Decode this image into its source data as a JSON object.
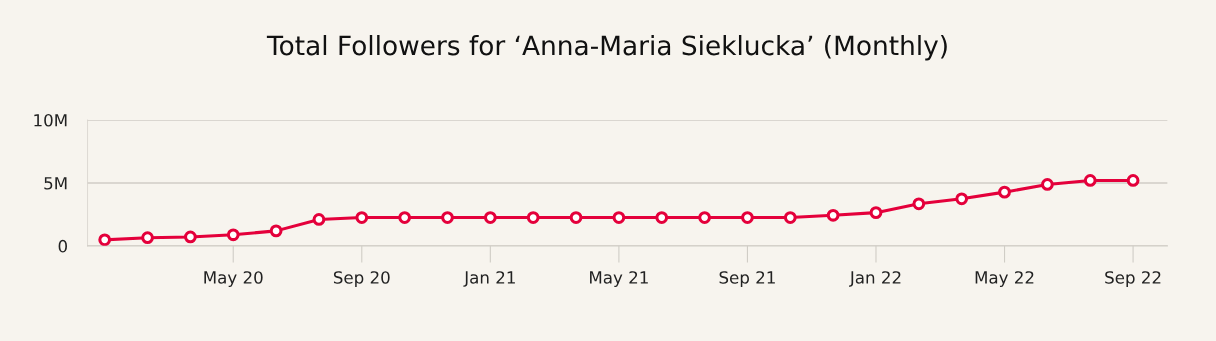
{
  "chart_data": {
    "type": "line",
    "title": "Total Followers for ‘Anna-Maria Sieklucka’ (Monthly)",
    "categories": [
      null,
      null,
      null,
      "May 20",
      null,
      null,
      "Sep 20",
      null,
      null,
      "Jan 21",
      null,
      null,
      "May 21",
      null,
      null,
      "Sep 21",
      null,
      null,
      "Jan 22",
      null,
      null,
      "May 22",
      null,
      null,
      "Sep 22"
    ],
    "series": [
      {
        "color": "#e4003b",
        "values": [
          0.48,
          0.65,
          0.71,
          0.88,
          1.19,
          2.1,
          2.25,
          2.25,
          2.25,
          2.25,
          2.25,
          2.25,
          2.25,
          2.25,
          2.25,
          2.25,
          2.25,
          2.43,
          2.64,
          3.34,
          3.74,
          4.27,
          4.88,
          5.2,
          5.2
        ]
      }
    ],
    "ylim": [
      0,
      10
    ],
    "yticks": [
      0,
      {
        "value": 5,
        "label": "5M"
      },
      {
        "value": 10,
        "label": "10M"
      }
    ],
    "grid": "y",
    "marker": "circle",
    "line_style": "solid"
  }
}
